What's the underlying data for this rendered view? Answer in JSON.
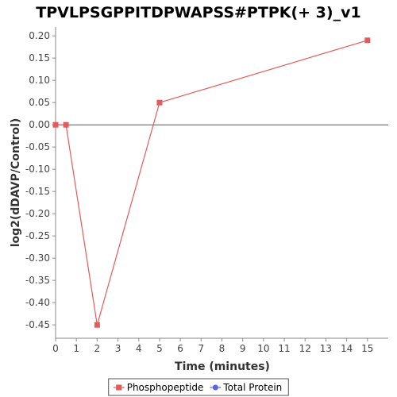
{
  "chart_data": {
    "type": "line",
    "title": "TPVLPSGPPITDPWAPSS#PTPK(+ 3)_v1",
    "xlabel": "Time (minutes)",
    "ylabel": "log2(dDAVP/Control)",
    "xlim": [
      0,
      16
    ],
    "ylim": [
      -0.48,
      0.22
    ],
    "xticks": [
      0,
      1,
      2,
      3,
      4,
      5,
      6,
      7,
      8,
      9,
      10,
      11,
      12,
      13,
      14,
      15
    ],
    "yticks": [
      0.2,
      0.15,
      0.1,
      0.05,
      0.0,
      -0.05,
      -0.1,
      -0.15,
      -0.2,
      -0.25,
      -0.3,
      -0.35,
      -0.4,
      -0.45
    ],
    "ytick_labels": [
      "0.20",
      "0.15",
      "0.10",
      "0.05",
      "0.00",
      "-0.05",
      "-0.10",
      "-0.15",
      "-0.20",
      "-0.25",
      "-0.30",
      "-0.35",
      "-0.40",
      "-0.45"
    ],
    "zero_line": 0,
    "grid": false,
    "legend_position": "bottom-center",
    "series": [
      {
        "name": "Phosphopeptide",
        "color": "#e35b5b",
        "marker": "square",
        "x": [
          0,
          0.5,
          2,
          5,
          15
        ],
        "y": [
          0.0,
          0.0,
          -0.45,
          0.05,
          0.19
        ]
      },
      {
        "name": "Total Protein",
        "color": "#5b63e3",
        "marker": "circle",
        "x": [],
        "y": []
      }
    ]
  }
}
